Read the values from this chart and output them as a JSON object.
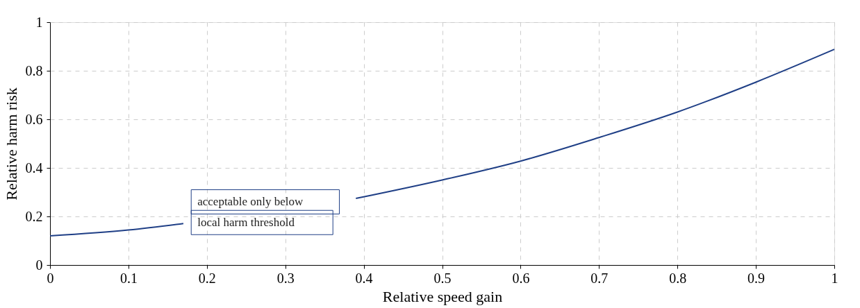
{
  "chart_data": {
    "type": "line",
    "xlabel": "Relative speed gain",
    "ylabel": "Relative harm risk",
    "x": [
      0,
      0.1,
      0.17,
      0.3,
      0.39,
      0.5,
      0.6,
      0.7,
      0.8,
      0.9,
      1.0
    ],
    "series": [
      {
        "color": "#1f3f86",
        "values": [
          0.12,
          0.144,
          0.171,
          null,
          0.274,
          0.35,
          0.428,
          0.525,
          0.63,
          0.753,
          0.888
        ]
      }
    ],
    "xlim": [
      0,
      1
    ],
    "ylim": [
      0,
      1
    ],
    "xticks": [
      0,
      0.1,
      0.2,
      0.3,
      0.4,
      0.5,
      0.6,
      0.7,
      0.8,
      0.9,
      1
    ],
    "yticks": [
      0,
      0.2,
      0.4,
      0.6,
      0.8,
      1
    ],
    "grid": true,
    "marker": "none",
    "line_style": "solid",
    "annotations": [
      "acceptable only below",
      "local harm threshold"
    ]
  }
}
